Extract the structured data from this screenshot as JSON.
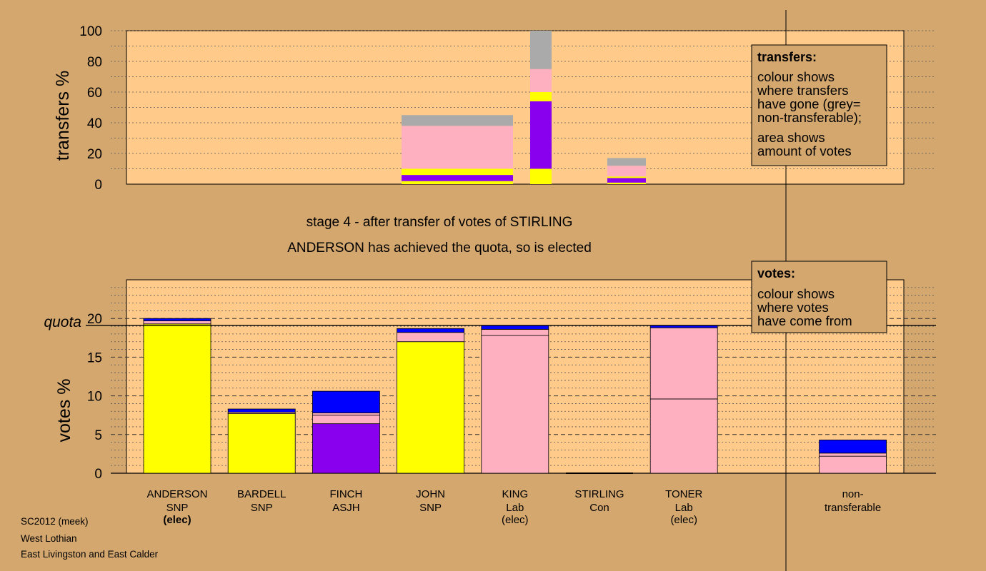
{
  "colors": {
    "background": "#d4a76f",
    "panel": "#ffca8a",
    "SNP": "#ffff00",
    "Lab": "#ffb0c0",
    "ASJH": "#8800ee",
    "Con": "#0000ff",
    "nontransferable": "#aaaaaa"
  },
  "caption": {
    "line1": "stage 4 - after transfer of votes of STIRLING",
    "line2": "ANDERSON has achieved the quota, so is elected"
  },
  "footer": {
    "line1": "SC2012 (meek)",
    "line2": "West Lothian",
    "line3": "East Livingston and East Calder"
  },
  "legends": {
    "transfers": {
      "title": "transfers:",
      "lines": [
        "colour shows",
        "where transfers",
        "have gone (grey=",
        "non-transferable);",
        "area shows",
        "amount of votes"
      ]
    },
    "votes": {
      "title": "votes:",
      "lines": [
        "colour shows",
        "where votes",
        "have come from"
      ]
    }
  },
  "chart_data": [
    {
      "type": "bar",
      "stacked": true,
      "ylabel": "transfers %",
      "ylim": [
        0,
        100
      ],
      "yticks": [
        "0",
        "20",
        "40",
        "60",
        "80",
        "100"
      ],
      "grid": "dotted",
      "bars": [
        {
          "name": "transfer-1",
          "x_range": [
            3.6,
            4.9
          ],
          "segments": [
            {
              "party": "SNP",
              "from": 0,
              "to": 2
            },
            {
              "party": "ASJH",
              "from": 2,
              "to": 6
            },
            {
              "party": "SNP",
              "from": 6,
              "to": 10
            },
            {
              "party": "Lab",
              "from": 10,
              "to": 38
            },
            {
              "party": "nontransferable",
              "from": 38,
              "to": 45
            }
          ]
        },
        {
          "name": "transfer-2",
          "x_range": [
            5.1,
            5.35
          ],
          "segments": [
            {
              "party": "SNP",
              "from": 0,
              "to": 10
            },
            {
              "party": "ASJH",
              "from": 10,
              "to": 54
            },
            {
              "party": "SNP",
              "from": 54,
              "to": 60
            },
            {
              "party": "Lab",
              "from": 60,
              "to": 75
            },
            {
              "party": "nontransferable",
              "from": 75,
              "to": 100
            }
          ]
        },
        {
          "name": "transfer-3",
          "x_range": [
            6.0,
            6.45
          ],
          "segments": [
            {
              "party": "SNP",
              "from": 0,
              "to": 1
            },
            {
              "party": "ASJH",
              "from": 1,
              "to": 4
            },
            {
              "party": "SNP",
              "from": 4,
              "to": 5
            },
            {
              "party": "Lab",
              "from": 5,
              "to": 12
            },
            {
              "party": "nontransferable",
              "from": 12,
              "to": 17
            }
          ]
        }
      ]
    },
    {
      "type": "bar",
      "stacked": true,
      "ylabel": "votes %",
      "ylim": [
        0,
        25
      ],
      "yticks": [
        "0",
        "5",
        "10",
        "15",
        "20"
      ],
      "quota": 19.1,
      "quota_label": "quota",
      "categories": [
        {
          "name": "ANDERSON",
          "party": "SNP",
          "status": "(elec)",
          "status_bold": true
        },
        {
          "name": "BARDELL",
          "party": "SNP",
          "status": ""
        },
        {
          "name": "FINCH",
          "party": "ASJH",
          "status": ""
        },
        {
          "name": "JOHN",
          "party": "SNP",
          "status": ""
        },
        {
          "name": "KING",
          "party": "Lab",
          "status": "(elec)"
        },
        {
          "name": "STIRLING",
          "party": "Con",
          "status": ""
        },
        {
          "name": "TONER",
          "party": "Lab",
          "status": "(elec)"
        },
        {
          "name": "",
          "party": "",
          "status": ""
        },
        {
          "name": "non-",
          "party": "transferable",
          "status": ""
        }
      ],
      "series": [
        {
          "index": 0,
          "segments": [
            {
              "party": "SNP",
              "from": 0,
              "to": 19.3
            },
            {
              "party": "Lab",
              "from": 19.3,
              "to": 19.7
            },
            {
              "party": "Con",
              "from": 19.7,
              "to": 20.0
            }
          ]
        },
        {
          "index": 1,
          "segments": [
            {
              "party": "SNP",
              "from": 0,
              "to": 7.7
            },
            {
              "party": "Lab",
              "from": 7.7,
              "to": 7.9
            },
            {
              "party": "Con",
              "from": 7.9,
              "to": 8.3
            }
          ]
        },
        {
          "index": 2,
          "segments": [
            {
              "party": "ASJH",
              "from": 0,
              "to": 6.4
            },
            {
              "party": "Lab",
              "from": 6.4,
              "to": 7.5
            },
            {
              "party": "Lab",
              "from": 7.5,
              "to": 7.8
            },
            {
              "party": "Con",
              "from": 7.8,
              "to": 10.6
            }
          ]
        },
        {
          "index": 3,
          "segments": [
            {
              "party": "SNP",
              "from": 0,
              "to": 17.0
            },
            {
              "party": "Lab",
              "from": 17.0,
              "to": 18.2
            },
            {
              "party": "Con",
              "from": 18.2,
              "to": 18.7
            }
          ]
        },
        {
          "index": 4,
          "segments": [
            {
              "party": "Lab",
              "from": 0,
              "to": 17.8
            },
            {
              "party": "Lab",
              "from": 17.8,
              "to": 18.6
            },
            {
              "party": "Con",
              "from": 18.6,
              "to": 19.1
            }
          ]
        },
        {
          "index": 5,
          "segments": []
        },
        {
          "index": 6,
          "segments": [
            {
              "party": "Lab",
              "from": 0,
              "to": 9.6
            },
            {
              "party": "Lab",
              "from": 9.6,
              "to": 18.8
            },
            {
              "party": "Con",
              "from": 18.8,
              "to": 19.1
            }
          ]
        },
        {
          "index": 7,
          "segments": []
        },
        {
          "index": 8,
          "segments": [
            {
              "party": "Lab",
              "from": 0,
              "to": 2.2
            },
            {
              "party": "Lab",
              "from": 2.2,
              "to": 2.6
            },
            {
              "party": "Con",
              "from": 2.6,
              "to": 4.3
            }
          ]
        }
      ]
    }
  ]
}
